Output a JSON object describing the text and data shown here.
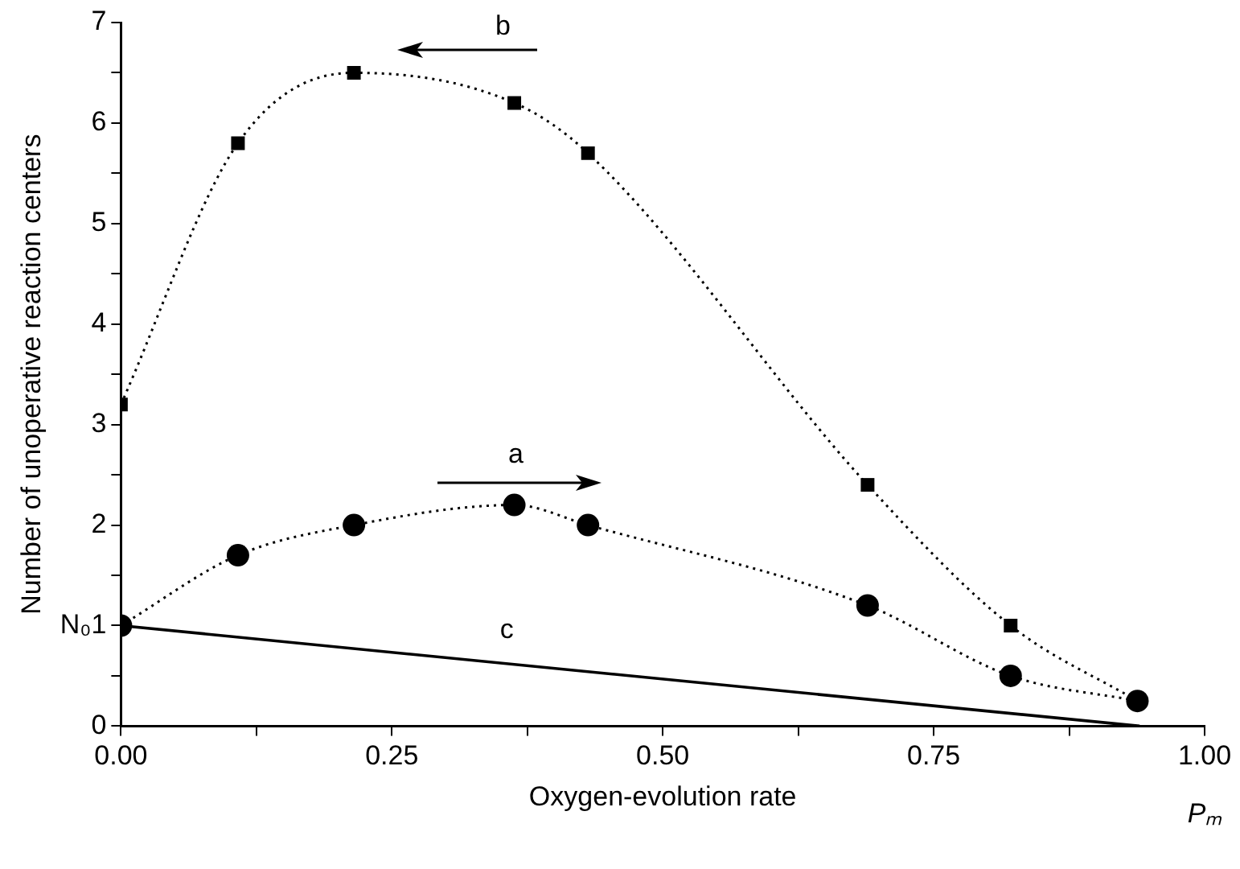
{
  "chart_data": {
    "type": "line",
    "xlabel": "Oxygen-evolution rate",
    "ylabel": "Number of unoperative reaction centers",
    "xlim": [
      0,
      1
    ],
    "xticks": [
      {
        "value": 0,
        "label": "0.00"
      },
      {
        "value": 0.125,
        "label": null
      },
      {
        "value": 0.25,
        "label": "0.25"
      },
      {
        "value": 0.375,
        "label": null
      },
      {
        "value": 0.5,
        "label": "0.50"
      },
      {
        "value": 0.625,
        "label": null
      },
      {
        "value": 0.75,
        "label": "0.75"
      },
      {
        "value": 0.875,
        "label": null
      },
      {
        "value": 1,
        "label": "1.00"
      }
    ],
    "ylim": [
      0,
      7
    ],
    "yticks": [
      0,
      {
        "value": 0.5,
        "label": null
      },
      {
        "value": 1,
        "label": "N₀1"
      },
      {
        "value": 1.5,
        "label": null
      },
      2,
      {
        "value": 2.5,
        "label": null
      },
      3,
      {
        "value": 3.5,
        "label": null
      },
      4,
      {
        "value": 4.5,
        "label": null
      },
      5,
      {
        "value": 5.5,
        "label": null
      },
      6,
      {
        "value": 6.5,
        "label": null
      },
      7
    ],
    "series": [
      {
        "name": "a",
        "color": "#000000",
        "marker": "circle",
        "line_style": "dotted",
        "x": [
          0,
          0.108,
          0.215,
          0.363,
          0.431,
          0.689,
          0.821,
          0.938
        ],
        "values": [
          1.0,
          1.7,
          2.0,
          2.2,
          2.0,
          1.2,
          0.5,
          0.25
        ]
      },
      {
        "name": "b",
        "color": "#000000",
        "marker": "square",
        "line_style": "dotted",
        "x": [
          0,
          0.108,
          0.215,
          0.363,
          0.431,
          0.689,
          0.821,
          0.938
        ],
        "values": [
          3.2,
          5.8,
          6.5,
          6.2,
          5.7,
          2.4,
          1.0,
          0.25
        ]
      },
      {
        "name": "c",
        "color": "#000000",
        "marker": "none",
        "line_style": "solid",
        "x": [
          0,
          0.94
        ],
        "values": [
          1,
          0
        ]
      }
    ],
    "annotations": [
      "Pₘ"
    ],
    "grid": false,
    "legend": false
  }
}
